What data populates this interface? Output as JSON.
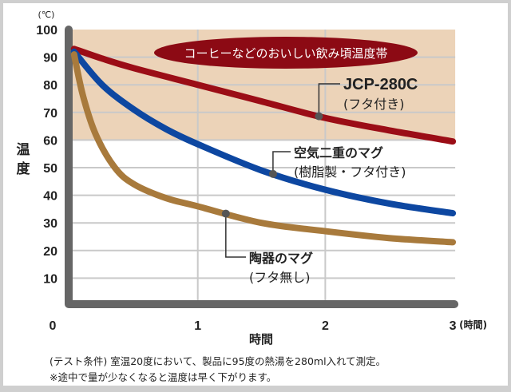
{
  "chart_data": {
    "type": "line",
    "title": "",
    "xlabel": "時間",
    "x_unit": "(時間)",
    "ylabel": "温度",
    "y_unit": "(℃)",
    "xlim": [
      0,
      3
    ],
    "ylim": [
      0,
      100
    ],
    "x_ticks": [
      "0",
      "1",
      "2",
      "3"
    ],
    "y_ticks": [
      "10",
      "20",
      "30",
      "40",
      "50",
      "60",
      "70",
      "80",
      "90",
      "100"
    ],
    "grid": true,
    "band": {
      "from": 60,
      "to": 100,
      "label": "コーヒーなどのおいしい飲み頃温度帯",
      "color": "#ecd3b8"
    },
    "series": [
      {
        "name": "JCP-280C",
        "label_lines": [
          "JCP-280C",
          "(フタ付き)"
        ],
        "color": "#9b0d16",
        "marker_x": 1.95,
        "points": [
          [
            0.03,
            93
          ],
          [
            0.25,
            89.5
          ],
          [
            0.5,
            86
          ],
          [
            1,
            80
          ],
          [
            1.5,
            74
          ],
          [
            2,
            68
          ],
          [
            2.5,
            63.5
          ],
          [
            3,
            59.5
          ]
        ]
      },
      {
        "name": "空気二重のマグ",
        "label_lines": [
          "空気二重のマグ",
          "(樹脂製・フタ付き)"
        ],
        "color": "#0d47a1",
        "marker_x": 1.59,
        "points": [
          [
            0.03,
            92
          ],
          [
            0.25,
            80
          ],
          [
            0.5,
            71
          ],
          [
            0.75,
            64
          ],
          [
            1,
            58.5
          ],
          [
            1.5,
            49
          ],
          [
            2,
            42
          ],
          [
            2.5,
            37
          ],
          [
            3,
            33.5
          ]
        ]
      },
      {
        "name": "陶器のマグ",
        "label_lines": [
          "陶器のマグ",
          "(フタ無し)"
        ],
        "color": "#a87a3c",
        "marker_x": 1.22,
        "points": [
          [
            0.03,
            91
          ],
          [
            0.1,
            76
          ],
          [
            0.2,
            62
          ],
          [
            0.35,
            50
          ],
          [
            0.5,
            44
          ],
          [
            0.75,
            39
          ],
          [
            1,
            36
          ],
          [
            1.5,
            30
          ],
          [
            2,
            27
          ],
          [
            2.5,
            24.5
          ],
          [
            3,
            23
          ]
        ]
      }
    ]
  },
  "notes": [
    "(テスト条件) 室温20度において、製品に95度の熱湯を280ml入れて測定。",
    "※途中で量が少なくなると温度は早く下がります。"
  ]
}
